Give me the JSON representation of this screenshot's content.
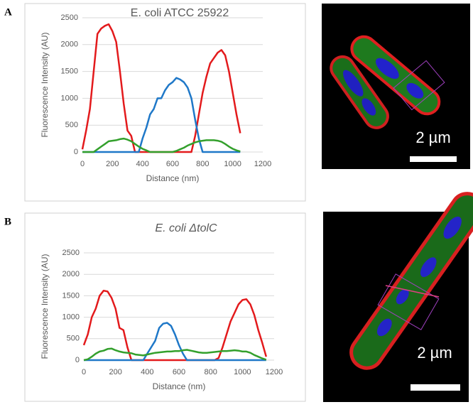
{
  "panel_labels": [
    "A",
    "B"
  ],
  "images": [
    {
      "scale_label": "2 µm"
    },
    {
      "scale_label": "2 µm"
    }
  ],
  "chart_data": [
    {
      "type": "line",
      "title": "E. coli ATCC 25922",
      "title_italic": false,
      "x_label": "Distance (nm)",
      "y_label": "Fluorescence Intensity (AU)",
      "x": [
        0,
        25,
        50,
        75,
        100,
        125,
        150,
        175,
        200,
        225,
        250,
        275,
        300,
        325,
        350,
        375,
        400,
        425,
        450,
        475,
        500,
        525,
        550,
        575,
        600,
        625,
        650,
        675,
        700,
        725,
        750,
        775,
        800,
        825,
        850,
        875,
        900,
        925,
        950,
        975,
        1000,
        1025,
        1050
      ],
      "series": [
        {
          "color": "#e31a1c",
          "values": [
            50,
            400,
            800,
            1500,
            2200,
            2300,
            2350,
            2380,
            2250,
            2050,
            1500,
            900,
            400,
            300,
            0,
            0,
            0,
            0,
            0,
            0,
            0,
            0,
            0,
            0,
            0,
            0,
            0,
            0,
            0,
            0,
            300,
            700,
            1100,
            1400,
            1650,
            1750,
            1850,
            1900,
            1800,
            1500,
            1100,
            700,
            350
          ]
        },
        {
          "color": "#1f78c8",
          "values": [
            0,
            0,
            0,
            0,
            0,
            0,
            0,
            0,
            0,
            0,
            0,
            0,
            0,
            0,
            0,
            0,
            250,
            450,
            700,
            800,
            1000,
            1000,
            1150,
            1250,
            1300,
            1380,
            1350,
            1300,
            1200,
            1000,
            600,
            250,
            0,
            0,
            0,
            0,
            0,
            0,
            0,
            0,
            0,
            0,
            0
          ]
        },
        {
          "color": "#33a02c",
          "values": [
            0,
            0,
            0,
            0,
            50,
            100,
            150,
            200,
            210,
            220,
            240,
            250,
            230,
            200,
            150,
            100,
            60,
            30,
            0,
            0,
            0,
            0,
            0,
            0,
            0,
            20,
            50,
            80,
            120,
            150,
            180,
            200,
            210,
            220,
            220,
            220,
            210,
            190,
            150,
            100,
            60,
            30,
            10
          ]
        }
      ],
      "xlim": [
        0,
        1200
      ],
      "xticks": [
        0,
        200,
        400,
        600,
        800,
        1000,
        1200
      ],
      "ylim": [
        0,
        2500
      ],
      "yticks": [
        0,
        500,
        1000,
        1500,
        2000,
        2500
      ],
      "grid": true
    },
    {
      "type": "line",
      "title": "E. coli ΔtolC",
      "title_italic": true,
      "x_label": "Distance (nm)",
      "y_label": "Fluorescence Intensity (AU)",
      "x": [
        0,
        25,
        50,
        75,
        100,
        125,
        150,
        175,
        200,
        225,
        250,
        275,
        300,
        325,
        350,
        375,
        400,
        425,
        450,
        475,
        500,
        525,
        550,
        575,
        600,
        625,
        650,
        675,
        700,
        725,
        750,
        775,
        800,
        825,
        850,
        875,
        900,
        925,
        950,
        975,
        1000,
        1025,
        1050,
        1075,
        1100,
        1125,
        1150
      ],
      "series": [
        {
          "color": "#e31a1c",
          "values": [
            350,
            600,
            1000,
            1200,
            1500,
            1620,
            1600,
            1450,
            1200,
            750,
            700,
            300,
            0,
            0,
            0,
            0,
            0,
            0,
            0,
            0,
            0,
            0,
            0,
            0,
            0,
            0,
            0,
            0,
            0,
            0,
            0,
            0,
            0,
            0,
            50,
            300,
            600,
            900,
            1100,
            1300,
            1400,
            1420,
            1300,
            1050,
            700,
            400,
            80
          ]
        },
        {
          "color": "#1f78c8",
          "values": [
            0,
            0,
            0,
            0,
            0,
            0,
            0,
            0,
            0,
            0,
            0,
            0,
            0,
            0,
            0,
            0,
            150,
            300,
            450,
            750,
            850,
            870,
            800,
            600,
            350,
            150,
            0,
            0,
            0,
            0,
            0,
            0,
            0,
            0,
            0,
            0,
            0,
            0,
            0,
            0,
            0,
            0,
            0,
            0,
            0,
            0,
            0
          ]
        },
        {
          "color": "#33a02c",
          "values": [
            0,
            20,
            80,
            150,
            200,
            220,
            260,
            270,
            230,
            200,
            180,
            170,
            160,
            130,
            120,
            110,
            130,
            150,
            170,
            180,
            190,
            200,
            200,
            210,
            210,
            230,
            240,
            220,
            200,
            180,
            170,
            170,
            180,
            190,
            200,
            210,
            210,
            220,
            230,
            220,
            200,
            200,
            170,
            120,
            80,
            40,
            10
          ]
        }
      ],
      "xlim": [
        0,
        1200
      ],
      "xticks": [
        0,
        200,
        400,
        600,
        800,
        1000,
        1200
      ],
      "ylim": [
        0,
        2500
      ],
      "yticks": [
        0,
        500,
        1000,
        1500,
        2000,
        2500
      ],
      "grid": true
    }
  ]
}
